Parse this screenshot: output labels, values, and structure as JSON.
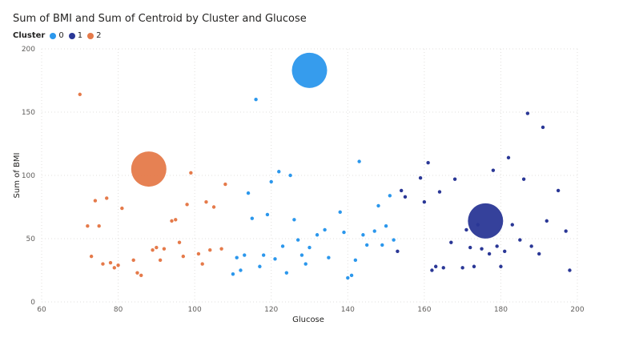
{
  "chart_data": {
    "type": "scatter",
    "title": "Sum of BMI and Sum of Centroid by Cluster and Glucose",
    "xlabel": "Glucose",
    "ylabel": "Sum of BMI",
    "xlim": [
      60,
      200
    ],
    "ylim": [
      0,
      200
    ],
    "x_ticks": [
      "60",
      "80",
      "100",
      "120",
      "140",
      "160",
      "180",
      "200"
    ],
    "y_ticks": [
      "0",
      "50",
      "100",
      "150",
      "200"
    ],
    "grid": true,
    "legend": {
      "title": "Cluster",
      "position": "top-left",
      "entries": [
        {
          "label": "0",
          "color": "#2b97ec"
        },
        {
          "label": "1",
          "color": "#2a3796"
        },
        {
          "label": "2",
          "color": "#e57a4a"
        }
      ]
    },
    "series": [
      {
        "name": "0",
        "color": "#2b97ec",
        "points": [
          [
            116,
            160
          ],
          [
            143,
            111
          ],
          [
            122,
            103
          ],
          [
            125,
            100
          ],
          [
            120,
            95
          ],
          [
            114,
            86
          ],
          [
            151,
            84
          ],
          [
            148,
            76
          ],
          [
            119,
            69
          ],
          [
            138,
            71
          ],
          [
            115,
            66
          ],
          [
            126,
            65
          ],
          [
            150,
            60
          ],
          [
            134,
            57
          ],
          [
            147,
            56
          ],
          [
            132,
            53
          ],
          [
            139,
            55
          ],
          [
            144,
            53
          ],
          [
            127,
            49
          ],
          [
            152,
            49
          ],
          [
            149,
            45
          ],
          [
            145,
            45
          ],
          [
            123,
            44
          ],
          [
            142,
            33
          ],
          [
            130,
            43
          ],
          [
            113,
            37
          ],
          [
            118,
            37
          ],
          [
            111,
            35
          ],
          [
            135,
            35
          ],
          [
            121,
            34
          ],
          [
            128,
            37
          ],
          [
            117,
            28
          ],
          [
            129,
            30
          ],
          [
            112,
            25
          ],
          [
            124,
            23
          ],
          [
            110,
            22
          ],
          [
            141,
            21
          ],
          [
            140,
            19
          ]
        ],
        "centroid": {
          "x": 130,
          "y": 183
        }
      },
      {
        "name": "1",
        "color": "#2a3796",
        "points": [
          [
            187,
            149
          ],
          [
            191,
            138
          ],
          [
            182,
            114
          ],
          [
            161,
            110
          ],
          [
            178,
            104
          ],
          [
            186,
            97
          ],
          [
            168,
            97
          ],
          [
            159,
            98
          ],
          [
            195,
            88
          ],
          [
            154,
            88
          ],
          [
            164,
            87
          ],
          [
            155,
            83
          ],
          [
            160,
            79
          ],
          [
            192,
            64
          ],
          [
            171,
            57
          ],
          [
            174,
            61
          ],
          [
            183,
            61
          ],
          [
            197,
            56
          ],
          [
            185,
            49
          ],
          [
            167,
            47
          ],
          [
            179,
            44
          ],
          [
            172,
            43
          ],
          [
            175,
            42
          ],
          [
            188,
            44
          ],
          [
            181,
            40
          ],
          [
            177,
            38
          ],
          [
            190,
            38
          ],
          [
            153,
            40
          ],
          [
            180,
            28
          ],
          [
            163,
            28
          ],
          [
            165,
            27
          ],
          [
            173,
            28
          ],
          [
            170,
            27
          ],
          [
            162,
            25
          ],
          [
            198,
            25
          ]
        ],
        "centroid": {
          "x": 176,
          "y": 64
        }
      },
      {
        "name": "2",
        "color": "#e57a4a",
        "points": [
          [
            70,
            164
          ],
          [
            99,
            102
          ],
          [
            108,
            93
          ],
          [
            74,
            80
          ],
          [
            77,
            82
          ],
          [
            103,
            79
          ],
          [
            98,
            77
          ],
          [
            105,
            75
          ],
          [
            81,
            74
          ],
          [
            95,
            65
          ],
          [
            94,
            64
          ],
          [
            72,
            60
          ],
          [
            75,
            60
          ],
          [
            96,
            47
          ],
          [
            90,
            43
          ],
          [
            92,
            42
          ],
          [
            89,
            41
          ],
          [
            107,
            42
          ],
          [
            104,
            41
          ],
          [
            101,
            38
          ],
          [
            97,
            36
          ],
          [
            73,
            36
          ],
          [
            91,
            33
          ],
          [
            84,
            33
          ],
          [
            78,
            31
          ],
          [
            102,
            30
          ],
          [
            76,
            30
          ],
          [
            80,
            29
          ],
          [
            79,
            27
          ],
          [
            85,
            23
          ],
          [
            86,
            21
          ]
        ],
        "centroid": {
          "x": 88,
          "y": 105
        }
      }
    ]
  }
}
